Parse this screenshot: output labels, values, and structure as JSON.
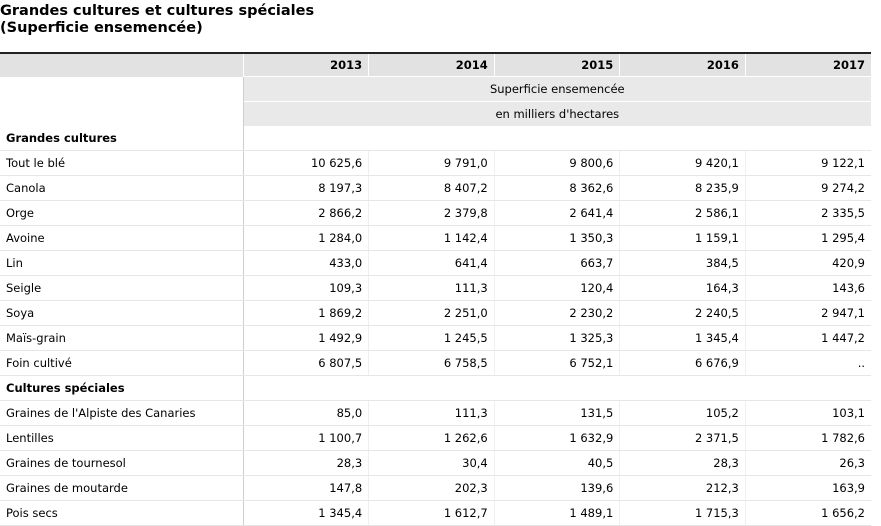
{
  "title_line1": "Grandes cultures et cultures spéciales",
  "title_line2": "(Superficie ensemencée)",
  "years": [
    "2013",
    "2014",
    "2015",
    "2016",
    "2017"
  ],
  "subheader1": "Superficie ensemencée",
  "subheader2": "en milliers d'hectares",
  "sections": [
    {
      "name": "Grandes cultures",
      "rows": [
        {
          "label": "Tout le blé",
          "values": [
            "10 625,6",
            "9 791,0",
            "9 800,6",
            "9 420,1",
            "9 122,1"
          ]
        },
        {
          "label": "Canola",
          "values": [
            "8 197,3",
            "8 407,2",
            "8 362,6",
            "8 235,9",
            "9 274,2"
          ]
        },
        {
          "label": "Orge",
          "values": [
            "2 866,2",
            "2 379,8",
            "2 641,4",
            "2 586,1",
            "2 335,5"
          ]
        },
        {
          "label": "Avoine",
          "values": [
            "1 284,0",
            "1 142,4",
            "1 350,3",
            "1 159,1",
            "1 295,4"
          ]
        },
        {
          "label": "Lin",
          "values": [
            "433,0",
            "641,4",
            "663,7",
            "384,5",
            "420,9"
          ]
        },
        {
          "label": "Seigle",
          "values": [
            "109,3",
            "111,3",
            "120,4",
            "164,3",
            "143,6"
          ]
        },
        {
          "label": "Soya",
          "values": [
            "1 869,2",
            "2 251,0",
            "2 230,2",
            "2 240,5",
            "2 947,1"
          ]
        },
        {
          "label": "Maïs-grain",
          "values": [
            "1 492,9",
            "1 245,5",
            "1 325,3",
            "1 345,4",
            "1 447,2"
          ]
        },
        {
          "label": "Foin cultivé",
          "values": [
            "6 807,5",
            "6 758,5",
            "6 752,1",
            "6 676,9",
            ".."
          ]
        }
      ]
    },
    {
      "name": "Cultures spéciales",
      "rows": [
        {
          "label": "Graines de l'Alpiste des Canaries",
          "values": [
            "85,0",
            "111,3",
            "131,5",
            "105,2",
            "103,1"
          ]
        },
        {
          "label": "Lentilles",
          "values": [
            "1 100,7",
            "1 262,6",
            "1 632,9",
            "2 371,5",
            "1 782,6"
          ]
        },
        {
          "label": "Graines de tournesol",
          "values": [
            "28,3",
            "30,4",
            "40,5",
            "28,3",
            "26,3"
          ]
        },
        {
          "label": "Graines de moutarde",
          "values": [
            "147,8",
            "202,3",
            "139,6",
            "212,3",
            "163,9"
          ]
        },
        {
          "label": "Pois secs",
          "values": [
            "1 345,4",
            "1 612,7",
            "1 489,1",
            "1 715,3",
            "1 656,2"
          ]
        }
      ]
    }
  ]
}
